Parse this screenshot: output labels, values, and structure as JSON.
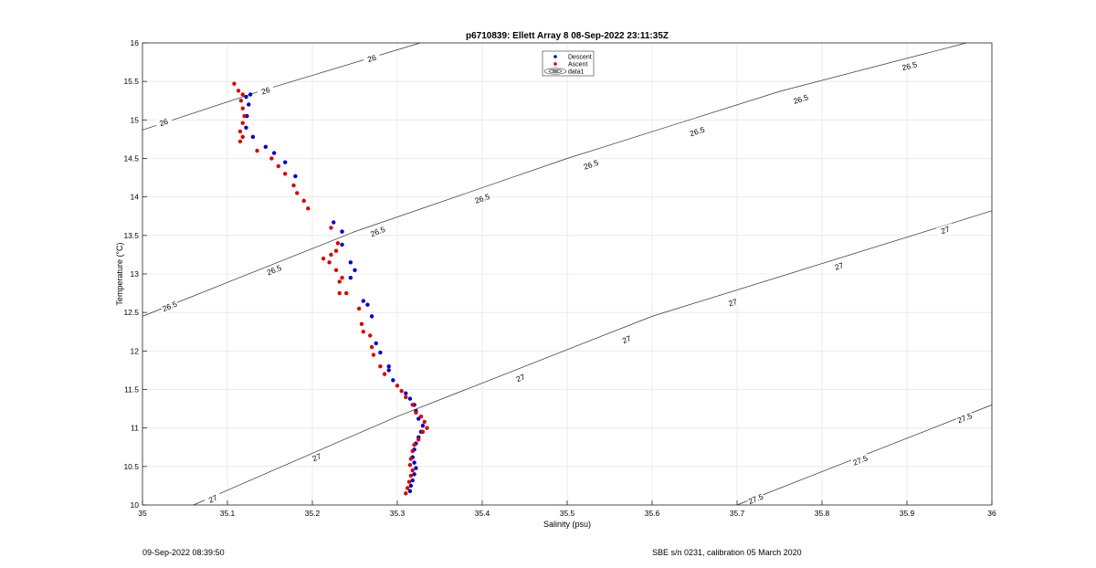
{
  "chart_data": {
    "type": "scatter",
    "title": "p6710839: Ellett Array 8 08-Sep-2022 23:11:35Z",
    "xlabel": "Salinity (psu)",
    "ylabel": "Temperature (°C)",
    "xlim": [
      35,
      36
    ],
    "ylim": [
      10,
      16
    ],
    "xticks": [
      "35",
      "35.1",
      "35.2",
      "35.3",
      "35.4",
      "35.5",
      "35.6",
      "35.7",
      "35.8",
      "35.9",
      "36"
    ],
    "yticks": [
      "10",
      "10.5",
      "11",
      "11.5",
      "12",
      "12.5",
      "13",
      "13.5",
      "14",
      "14.5",
      "15",
      "15.5",
      "16"
    ],
    "grid": true,
    "legend_position": "top-center",
    "legend": [
      "Descent",
      "Ascent",
      "data1"
    ],
    "series": [
      {
        "name": "Descent",
        "color": "#0000cc",
        "points": [
          [
            35.127,
            15.33
          ],
          [
            35.122,
            15.3
          ],
          [
            35.125,
            15.2
          ],
          [
            35.123,
            15.05
          ],
          [
            35.122,
            14.9
          ],
          [
            35.13,
            14.78
          ],
          [
            35.145,
            14.65
          ],
          [
            35.155,
            14.57
          ],
          [
            35.168,
            14.45
          ],
          [
            35.18,
            14.27
          ],
          [
            35.225,
            13.67
          ],
          [
            35.235,
            13.55
          ],
          [
            35.235,
            13.38
          ],
          [
            35.245,
            13.15
          ],
          [
            35.25,
            13.05
          ],
          [
            35.245,
            12.95
          ],
          [
            35.26,
            12.65
          ],
          [
            35.265,
            12.6
          ],
          [
            35.27,
            12.45
          ],
          [
            35.275,
            12.1
          ],
          [
            35.28,
            11.98
          ],
          [
            35.29,
            11.8
          ],
          [
            35.29,
            11.75
          ],
          [
            35.295,
            11.62
          ],
          [
            35.31,
            11.45
          ],
          [
            35.315,
            11.38
          ],
          [
            35.32,
            11.3
          ],
          [
            35.322,
            11.22
          ],
          [
            35.325,
            11.12
          ],
          [
            35.33,
            11.03
          ],
          [
            35.328,
            10.95
          ],
          [
            35.325,
            10.88
          ],
          [
            35.322,
            10.8
          ],
          [
            35.32,
            10.72
          ],
          [
            35.318,
            10.62
          ],
          [
            35.32,
            10.55
          ],
          [
            35.322,
            10.48
          ],
          [
            35.32,
            10.4
          ],
          [
            35.318,
            10.32
          ],
          [
            35.316,
            10.25
          ],
          [
            35.315,
            10.18
          ]
        ]
      },
      {
        "name": "Ascent",
        "color": "#dd0000",
        "points": [
          [
            35.108,
            15.47
          ],
          [
            35.113,
            15.38
          ],
          [
            35.118,
            15.33
          ],
          [
            35.116,
            15.25
          ],
          [
            35.118,
            15.15
          ],
          [
            35.12,
            15.05
          ],
          [
            35.118,
            14.96
          ],
          [
            35.115,
            14.85
          ],
          [
            35.118,
            14.78
          ],
          [
            35.115,
            14.72
          ],
          [
            35.135,
            14.6
          ],
          [
            35.152,
            14.5
          ],
          [
            35.16,
            14.4
          ],
          [
            35.168,
            14.3
          ],
          [
            35.178,
            14.15
          ],
          [
            35.182,
            14.05
          ],
          [
            35.19,
            13.95
          ],
          [
            35.195,
            13.85
          ],
          [
            35.222,
            13.6
          ],
          [
            35.23,
            13.4
          ],
          [
            35.228,
            13.3
          ],
          [
            35.222,
            13.25
          ],
          [
            35.213,
            13.2
          ],
          [
            35.22,
            13.15
          ],
          [
            35.228,
            13.05
          ],
          [
            35.235,
            12.95
          ],
          [
            35.232,
            12.9
          ],
          [
            35.24,
            12.75
          ],
          [
            35.232,
            12.75
          ],
          [
            35.255,
            12.55
          ],
          [
            35.258,
            12.35
          ],
          [
            35.26,
            12.25
          ],
          [
            35.268,
            12.2
          ],
          [
            35.27,
            12.05
          ],
          [
            35.272,
            11.95
          ],
          [
            35.28,
            11.8
          ],
          [
            35.285,
            11.7
          ],
          [
            35.3,
            11.55
          ],
          [
            35.305,
            11.48
          ],
          [
            35.31,
            11.4
          ],
          [
            35.318,
            11.3
          ],
          [
            35.322,
            11.2
          ],
          [
            35.328,
            11.15
          ],
          [
            35.332,
            11.08
          ],
          [
            35.335,
            11.0
          ],
          [
            35.33,
            10.95
          ],
          [
            35.325,
            10.85
          ],
          [
            35.32,
            10.78
          ],
          [
            35.318,
            10.7
          ],
          [
            35.316,
            10.6
          ],
          [
            35.315,
            10.52
          ],
          [
            35.318,
            10.45
          ],
          [
            35.316,
            10.38
          ],
          [
            35.314,
            10.3
          ],
          [
            35.312,
            10.22
          ],
          [
            35.31,
            10.15
          ]
        ]
      }
    ],
    "contours": [
      {
        "level": "26",
        "points": [
          [
            35.0,
            14.87
          ],
          [
            35.14,
            15.38
          ],
          [
            35.327,
            16.0
          ]
        ]
      },
      {
        "level": "26.5",
        "points": [
          [
            35.0,
            12.45
          ],
          [
            35.25,
            13.55
          ],
          [
            35.5,
            14.5
          ],
          [
            35.75,
            15.37
          ],
          [
            35.97,
            16.0
          ]
        ]
      },
      {
        "level": "27",
        "points": [
          [
            35.06,
            10.0
          ],
          [
            35.3,
            11.15
          ],
          [
            35.6,
            12.45
          ],
          [
            36.0,
            13.82
          ]
        ]
      },
      {
        "level": "27.5",
        "points": [
          [
            35.7,
            10.0
          ],
          [
            36.0,
            11.3
          ]
        ]
      }
    ],
    "contour_labels": [
      {
        "text": "26",
        "x": 35.025,
        "y": 14.97
      },
      {
        "text": "26",
        "x": 35.145,
        "y": 15.38
      },
      {
        "text": "26",
        "x": 35.27,
        "y": 15.8
      },
      {
        "text": "26.5",
        "x": 35.032,
        "y": 12.58
      },
      {
        "text": "26.5",
        "x": 35.155,
        "y": 13.05
      },
      {
        "text": "26.5",
        "x": 35.277,
        "y": 13.55
      },
      {
        "text": "26.5",
        "x": 35.4,
        "y": 13.98
      },
      {
        "text": "26.5",
        "x": 35.528,
        "y": 14.42
      },
      {
        "text": "26.5",
        "x": 35.653,
        "y": 14.85
      },
      {
        "text": "26.5",
        "x": 35.775,
        "y": 15.27
      },
      {
        "text": "26.5",
        "x": 35.903,
        "y": 15.7
      },
      {
        "text": "27",
        "x": 35.083,
        "y": 10.08
      },
      {
        "text": "27",
        "x": 35.205,
        "y": 10.62
      },
      {
        "text": "27",
        "x": 35.445,
        "y": 11.65
      },
      {
        "text": "27",
        "x": 35.57,
        "y": 12.15
      },
      {
        "text": "27",
        "x": 35.695,
        "y": 12.63
      },
      {
        "text": "27",
        "x": 35.82,
        "y": 13.1
      },
      {
        "text": "27",
        "x": 35.945,
        "y": 13.57
      },
      {
        "text": "27.5",
        "x": 35.722,
        "y": 10.08
      },
      {
        "text": "27.5",
        "x": 35.845,
        "y": 10.58
      },
      {
        "text": "27.5",
        "x": 35.968,
        "y": 11.13
      }
    ]
  },
  "footer": {
    "timestamp": "09-Sep-2022 08:39:50",
    "calibration": "SBE s/n 0231, calibration 05 March 2020"
  }
}
